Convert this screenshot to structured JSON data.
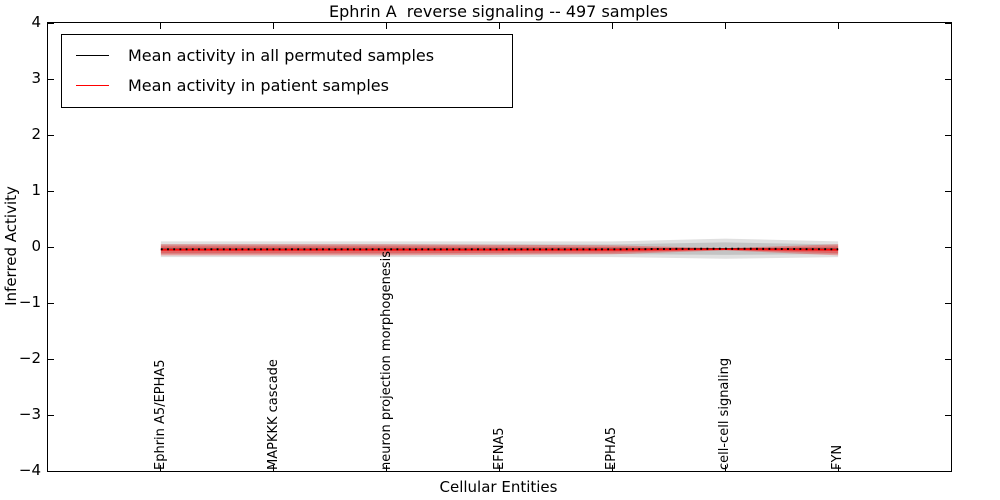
{
  "chart_data": {
    "type": "line",
    "title": "Ephrin A  reverse signaling -- 497 samples",
    "xlabel": "Cellular Entities",
    "ylabel": "Inferred Activity",
    "xlim": [
      -1,
      7
    ],
    "ylim": [
      -4,
      4
    ],
    "yticks": [
      4,
      3,
      2,
      1,
      0,
      -1,
      -2,
      -3,
      -4
    ],
    "ytick_labels": [
      "4",
      "3",
      "2",
      "1",
      "0",
      "−1",
      "−2",
      "−3",
      "−4"
    ],
    "categories": [
      "Ephrin A5/EPHA5",
      "MAPKKK cascade",
      "neuron projection morphogenesis",
      "EFNA5",
      "EPHA5",
      "cell-cell signaling",
      "FYN"
    ],
    "grid": false,
    "legend_position": "upper left",
    "series": [
      {
        "name": "Mean activity in all permuted samples",
        "color": "#000000",
        "line_style": "dashed",
        "values": [
          -0.04,
          -0.04,
          -0.04,
          -0.04,
          -0.04,
          -0.03,
          -0.04
        ],
        "band_halfwidth": [
          0.14,
          0.14,
          0.14,
          0.14,
          0.14,
          0.18,
          0.14
        ],
        "band_alpha": 0.12
      },
      {
        "name": "Mean activity in patient samples",
        "color": "#ff0000",
        "line_style": "solid",
        "values": [
          -0.05,
          -0.05,
          -0.05,
          -0.05,
          -0.05,
          -0.04,
          -0.05
        ],
        "band_halfwidth": [
          0.1,
          0.1,
          0.1,
          0.09,
          0.08,
          0.02,
          0.1
        ],
        "band_alpha": 0.28
      }
    ]
  }
}
